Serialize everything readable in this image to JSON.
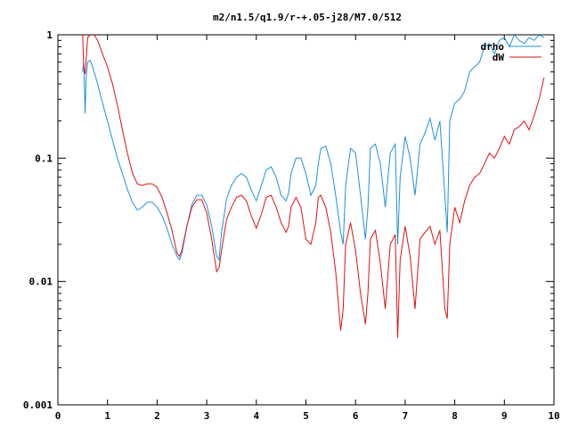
{
  "chart_data": {
    "type": "line",
    "title": "m2/n1.5/q1.9/r-+.05-j28/M7.0/512",
    "xlabel": "",
    "ylabel": "",
    "xlim": [
      0,
      10
    ],
    "ylim": [
      0.001,
      1
    ],
    "yscale": "log",
    "grid": false,
    "legend_position": "top-right",
    "x_ticks": [
      0,
      1,
      2,
      3,
      4,
      5,
      6,
      7,
      8,
      9,
      10
    ],
    "x_tick_labels": [
      "0",
      "1",
      "2",
      "3",
      "4",
      "5",
      "6",
      "7",
      "8",
      "9",
      "10"
    ],
    "y_ticks": [
      0.001,
      0.01,
      0.1,
      1
    ],
    "y_tick_labels": [
      "0.001",
      "0.01",
      "0.1",
      "1"
    ],
    "series": [
      {
        "name": "drho",
        "color": "#1e90e0",
        "x": [
          0.5,
          0.52,
          0.55,
          0.57,
          0.6,
          0.65,
          0.7,
          0.8,
          0.9,
          1.0,
          1.1,
          1.2,
          1.3,
          1.4,
          1.5,
          1.6,
          1.7,
          1.8,
          1.9,
          2.0,
          2.1,
          2.2,
          2.3,
          2.4,
          2.45,
          2.5,
          2.6,
          2.7,
          2.8,
          2.9,
          3.0,
          3.1,
          3.2,
          3.25,
          3.3,
          3.4,
          3.5,
          3.6,
          3.7,
          3.8,
          3.9,
          4.0,
          4.1,
          4.2,
          4.3,
          4.4,
          4.5,
          4.6,
          4.65,
          4.7,
          4.8,
          4.9,
          5.0,
          5.1,
          5.2,
          5.25,
          5.3,
          5.4,
          5.5,
          5.6,
          5.7,
          5.75,
          5.8,
          5.9,
          6.0,
          6.1,
          6.2,
          6.25,
          6.3,
          6.4,
          6.5,
          6.6,
          6.7,
          6.8,
          6.85,
          6.9,
          7.0,
          7.1,
          7.2,
          7.3,
          7.4,
          7.5,
          7.6,
          7.7,
          7.8,
          7.85,
          7.9,
          8.0,
          8.1,
          8.2,
          8.3,
          8.4,
          8.5,
          8.6,
          8.7,
          8.8,
          8.9,
          9.0,
          9.1,
          9.2,
          9.3,
          9.4,
          9.5,
          9.6,
          9.7,
          9.8
        ],
        "values": [
          0.5,
          0.6,
          0.23,
          0.45,
          0.6,
          0.62,
          0.55,
          0.4,
          0.28,
          0.2,
          0.14,
          0.1,
          0.075,
          0.056,
          0.044,
          0.038,
          0.04,
          0.044,
          0.044,
          0.04,
          0.034,
          0.027,
          0.02,
          0.016,
          0.015,
          0.017,
          0.028,
          0.042,
          0.05,
          0.05,
          0.042,
          0.028,
          0.016,
          0.015,
          0.025,
          0.047,
          0.06,
          0.07,
          0.075,
          0.07,
          0.055,
          0.045,
          0.06,
          0.08,
          0.085,
          0.07,
          0.05,
          0.045,
          0.052,
          0.075,
          0.1,
          0.1,
          0.075,
          0.05,
          0.06,
          0.09,
          0.12,
          0.125,
          0.09,
          0.05,
          0.025,
          0.02,
          0.06,
          0.12,
          0.11,
          0.05,
          0.022,
          0.04,
          0.12,
          0.13,
          0.09,
          0.04,
          0.11,
          0.13,
          0.02,
          0.07,
          0.15,
          0.1,
          0.05,
          0.13,
          0.16,
          0.21,
          0.14,
          0.2,
          0.05,
          0.025,
          0.2,
          0.28,
          0.3,
          0.35,
          0.5,
          0.55,
          0.6,
          0.8,
          0.85,
          0.7,
          0.9,
          0.95,
          0.8,
          1.0,
          0.9,
          0.85,
          0.95,
          0.9,
          1.0,
          0.95
        ]
      },
      {
        "name": "dW",
        "color": "#e01010",
        "x": [
          0.5,
          0.52,
          0.55,
          0.6,
          0.7,
          0.8,
          0.9,
          1.0,
          1.1,
          1.2,
          1.3,
          1.4,
          1.5,
          1.6,
          1.7,
          1.8,
          1.9,
          2.0,
          2.1,
          2.2,
          2.3,
          2.4,
          2.45,
          2.5,
          2.6,
          2.7,
          2.8,
          2.9,
          3.0,
          3.1,
          3.2,
          3.25,
          3.3,
          3.4,
          3.5,
          3.6,
          3.7,
          3.8,
          3.9,
          4.0,
          4.1,
          4.2,
          4.3,
          4.4,
          4.5,
          4.6,
          4.65,
          4.7,
          4.8,
          4.9,
          5.0,
          5.1,
          5.2,
          5.25,
          5.3,
          5.4,
          5.5,
          5.6,
          5.7,
          5.75,
          5.8,
          5.9,
          6.0,
          6.1,
          6.2,
          6.25,
          6.3,
          6.4,
          6.5,
          6.6,
          6.7,
          6.8,
          6.85,
          6.9,
          7.0,
          7.1,
          7.2,
          7.3,
          7.4,
          7.5,
          7.6,
          7.7,
          7.8,
          7.85,
          7.9,
          8.0,
          8.1,
          8.2,
          8.3,
          8.4,
          8.5,
          8.6,
          8.7,
          8.8,
          8.9,
          9.0,
          9.1,
          9.2,
          9.3,
          9.4,
          9.5,
          9.6,
          9.7,
          9.8
        ],
        "values": [
          1.0,
          0.55,
          0.48,
          0.95,
          1.05,
          0.9,
          0.7,
          0.55,
          0.4,
          0.27,
          0.17,
          0.11,
          0.076,
          0.062,
          0.06,
          0.062,
          0.062,
          0.058,
          0.048,
          0.036,
          0.026,
          0.017,
          0.016,
          0.018,
          0.028,
          0.04,
          0.046,
          0.046,
          0.036,
          0.022,
          0.012,
          0.013,
          0.018,
          0.032,
          0.04,
          0.048,
          0.05,
          0.045,
          0.034,
          0.027,
          0.035,
          0.048,
          0.05,
          0.04,
          0.03,
          0.025,
          0.028,
          0.04,
          0.048,
          0.04,
          0.022,
          0.02,
          0.03,
          0.048,
          0.05,
          0.04,
          0.025,
          0.012,
          0.004,
          0.006,
          0.02,
          0.03,
          0.018,
          0.008,
          0.0045,
          0.008,
          0.022,
          0.026,
          0.014,
          0.006,
          0.02,
          0.024,
          0.0035,
          0.015,
          0.028,
          0.016,
          0.006,
          0.022,
          0.025,
          0.028,
          0.02,
          0.026,
          0.006,
          0.005,
          0.02,
          0.04,
          0.03,
          0.045,
          0.06,
          0.07,
          0.075,
          0.09,
          0.11,
          0.1,
          0.12,
          0.15,
          0.13,
          0.17,
          0.18,
          0.2,
          0.17,
          0.22,
          0.3,
          0.45
        ]
      }
    ]
  }
}
